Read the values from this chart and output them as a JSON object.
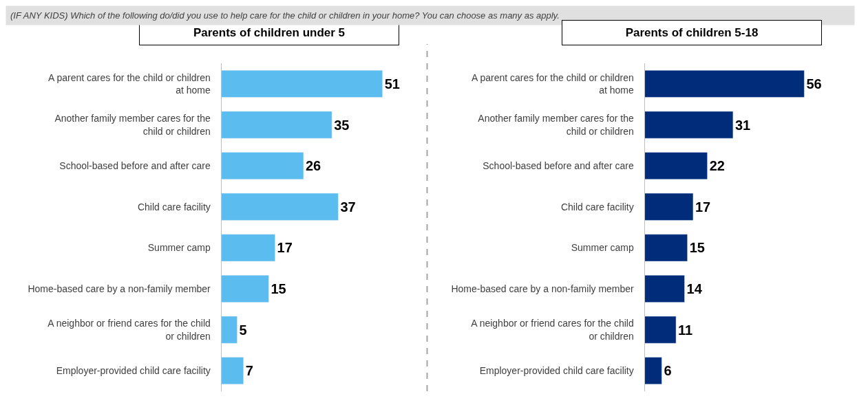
{
  "chart_data": [
    {
      "type": "bar",
      "orientation": "horizontal",
      "title": "Parents of children under 5",
      "annotations": [
        "(IF ANY KIDS) Which of the following do/did you use to help care for the child or children in your home? You can choose as many as apply."
      ],
      "categories": [
        "A parent cares for the child or children at home",
        "Another family member cares for the child or children",
        "School-based before and after care",
        "Child care facility",
        "Summer camp",
        "Home-based care by a non-family member",
        "A neighbor or friend cares for the child or children",
        "Employer-provided child care facility"
      ],
      "values": [
        51,
        35,
        26,
        37,
        17,
        15,
        5,
        7
      ],
      "color": "#5bbcf0",
      "data_labels": true
    },
    {
      "type": "bar",
      "orientation": "horizontal",
      "title": "Parents of children 5-18",
      "categories": [
        "A parent cares for the child or children at home",
        "Another family member cares for the child or children",
        "School-based before and after care",
        "Child care facility",
        "Summer camp",
        "Home-based care by a non-family member",
        "A neighbor or friend cares for the child or children",
        "Employer-provided child care facility"
      ],
      "values": [
        56,
        31,
        22,
        17,
        15,
        14,
        11,
        6
      ],
      "color": "#002c7a",
      "data_labels": true
    }
  ]
}
